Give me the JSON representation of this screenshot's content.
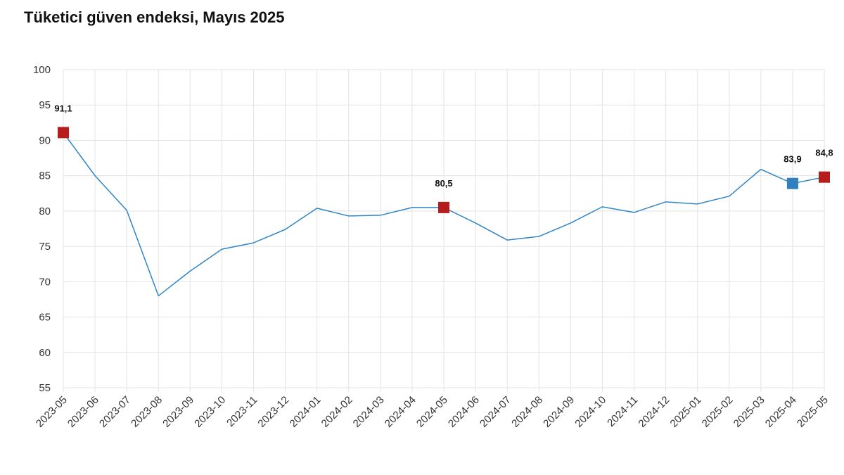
{
  "chart_data": {
    "type": "line",
    "title": "Tüketici güven endeksi, Mayıs 2025",
    "xlabel": "",
    "ylabel": "",
    "ylim": [
      55,
      100
    ],
    "yticks": [
      "55",
      "60",
      "65",
      "70",
      "75",
      "80",
      "85",
      "90",
      "95",
      "100"
    ],
    "grid": true,
    "categories": [
      "2023-05",
      "2023-06",
      "2023-07",
      "2023-08",
      "2023-09",
      "2023-10",
      "2023-11",
      "2023-12",
      "2024-01",
      "2024-02",
      "2024-03",
      "2024-04",
      "2024-05",
      "2024-06",
      "2024-07",
      "2024-08",
      "2024-09",
      "2024-10",
      "2024-11",
      "2024-12",
      "2025-01",
      "2025-02",
      "2025-03",
      "2025-04",
      "2025-05"
    ],
    "series": [
      {
        "values": [
          91.1,
          85.0,
          80.1,
          68.0,
          71.5,
          74.6,
          75.5,
          77.4,
          80.4,
          79.3,
          79.4,
          80.5,
          80.5,
          78.3,
          75.9,
          76.4,
          78.3,
          80.6,
          79.8,
          81.3,
          81.0,
          82.1,
          85.9,
          83.9,
          84.8
        ],
        "color": "#2f86c6"
      }
    ],
    "highlights": [
      {
        "index": 0,
        "label": "91,1",
        "color": "#b71c1c"
      },
      {
        "index": 12,
        "label": "80,5",
        "color": "#b71c1c"
      },
      {
        "index": 23,
        "label": "83,9",
        "color": "#2f7fc1"
      },
      {
        "index": 24,
        "label": "84,8",
        "color": "#b71c1c"
      }
    ]
  }
}
